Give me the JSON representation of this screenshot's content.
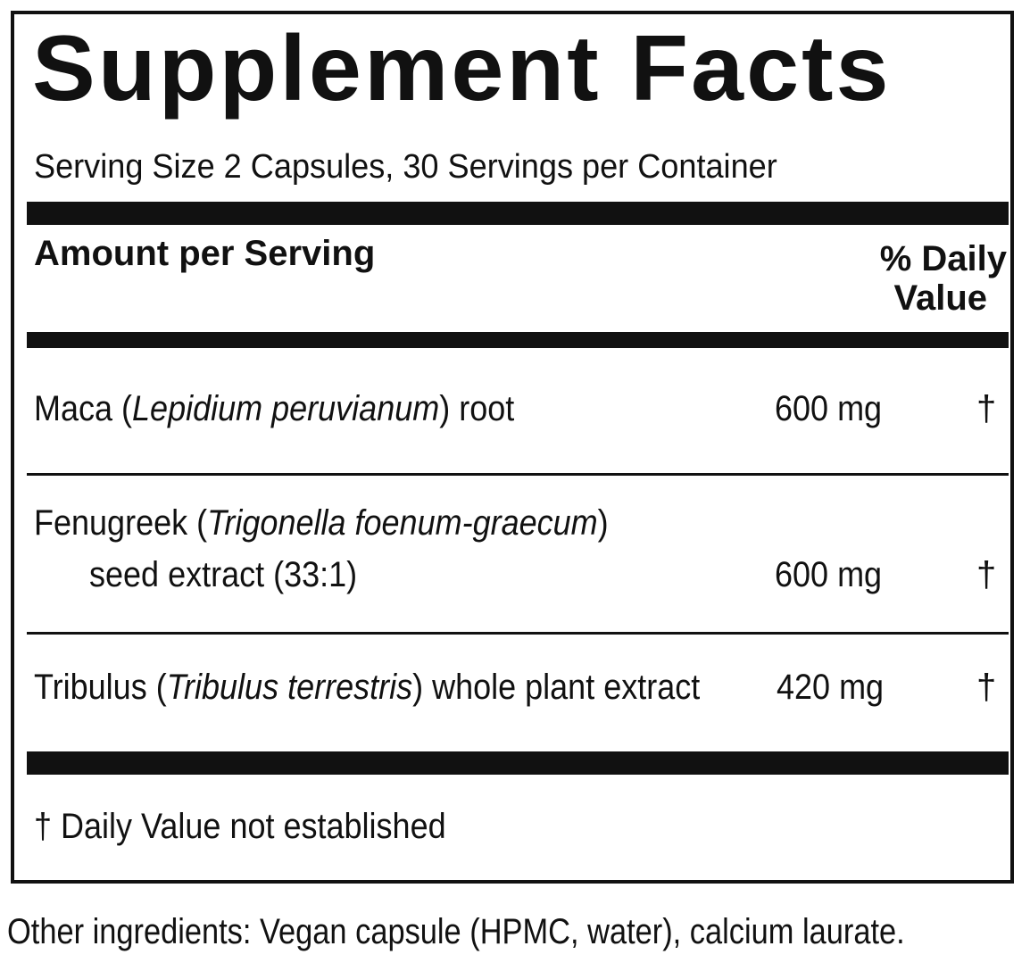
{
  "title": "Supplement Facts",
  "serving": "Serving Size 2 Capsules, 30 Servings per Container",
  "header": {
    "amount": "Amount per Serving",
    "dv1": "% Daily",
    "dv2": "Value"
  },
  "rows": [
    {
      "pre": "Maca (",
      "latin": "Lepidium peruvianum",
      "post": ") root",
      "line2": "",
      "amount": "600  mg",
      "dv": "†"
    },
    {
      "pre": "Fenugreek (",
      "latin": "Trigonella foenum-graecum",
      "post": ")",
      "line2": "seed extract (33:1)",
      "amount": "600  mg",
      "dv": "†"
    },
    {
      "pre": "Tribulus (",
      "latin": "Tribulus terrestris",
      "post": ") whole plant extract",
      "line2": "",
      "amount": "420  mg",
      "dv": "†"
    }
  ],
  "footnote": "† Daily Value not established",
  "other": "Other ingredients: Vegan capsule (HPMC, water), calcium laurate."
}
